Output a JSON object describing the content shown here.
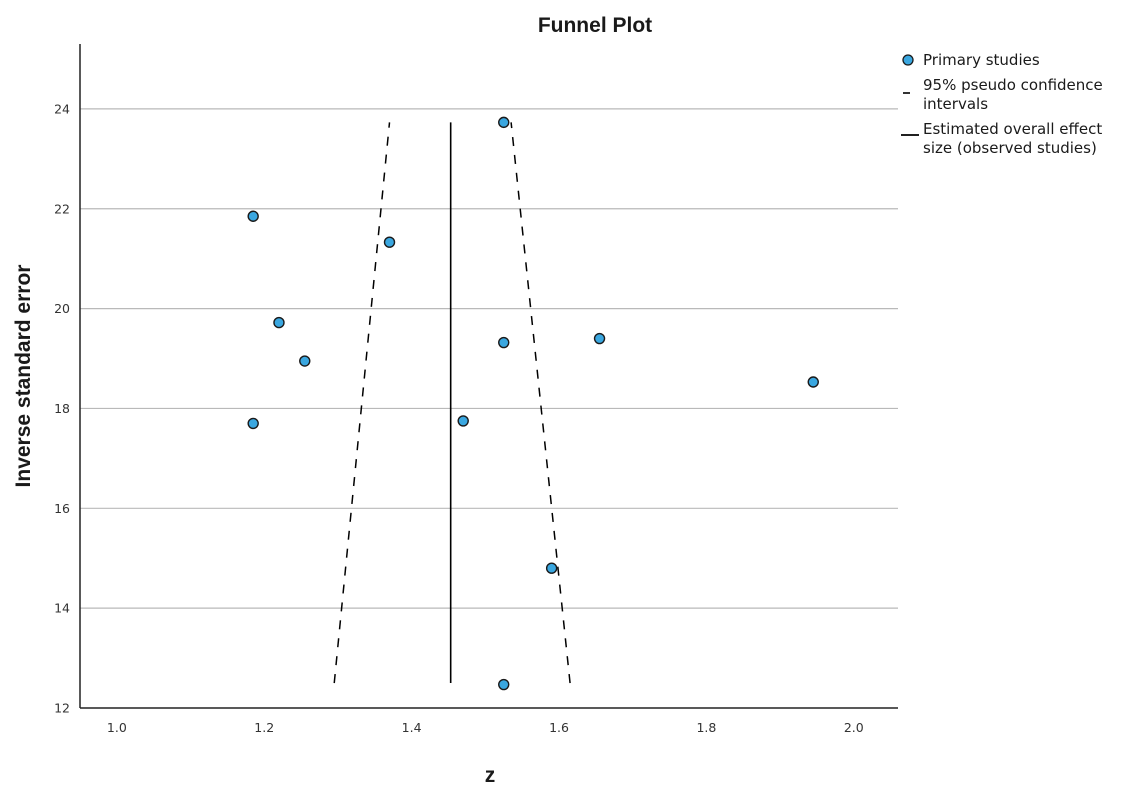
{
  "chart_data": {
    "type": "scatter",
    "title": "Funnel Plot",
    "xlabel": "z",
    "ylabel": "Inverse standard error",
    "xlim": [
      0.95,
      2.06
    ],
    "ylim": [
      12,
      25.3
    ],
    "x_ticks": [
      "1.0",
      "1.2",
      "1.4",
      "1.6",
      "1.8",
      "2.0"
    ],
    "y_ticks": [
      "12",
      "14",
      "16",
      "18",
      "20",
      "22",
      "24"
    ],
    "grid": "horizontal",
    "legend_position": "top-right",
    "series": [
      {
        "name": "Primary studies",
        "kind": "points",
        "color": "#3aa7e0",
        "x": [
          1.185,
          1.22,
          1.255,
          1.185,
          1.37,
          1.47,
          1.525,
          1.525,
          1.525,
          1.59,
          1.655,
          1.945
        ],
        "y": [
          21.85,
          19.72,
          18.95,
          17.7,
          21.33,
          17.75,
          23.73,
          19.32,
          12.47,
          14.8,
          19.4,
          18.53
        ]
      },
      {
        "name": "95% pseudo confidence intervals",
        "kind": "dashed-lines",
        "color": "#000000",
        "lines": [
          {
            "x": [
              1.295,
              1.37
            ],
            "y": [
              12.5,
              23.73
            ]
          },
          {
            "x": [
              1.615,
              1.535
            ],
            "y": [
              12.5,
              23.73
            ]
          }
        ]
      },
      {
        "name": "Estimated overall effect size (observed studies)",
        "kind": "vertical-line",
        "color": "#000000",
        "x": 1.453,
        "y": [
          12.5,
          23.73
        ]
      }
    ],
    "legend": [
      {
        "marker": "circle",
        "lines": [
          "Primary studies"
        ]
      },
      {
        "marker": "dash",
        "lines": [
          "95% pseudo confidence",
          "intervals"
        ]
      },
      {
        "marker": "solid",
        "lines": [
          "Estimated overall effect",
          "size (observed studies)"
        ]
      }
    ]
  }
}
